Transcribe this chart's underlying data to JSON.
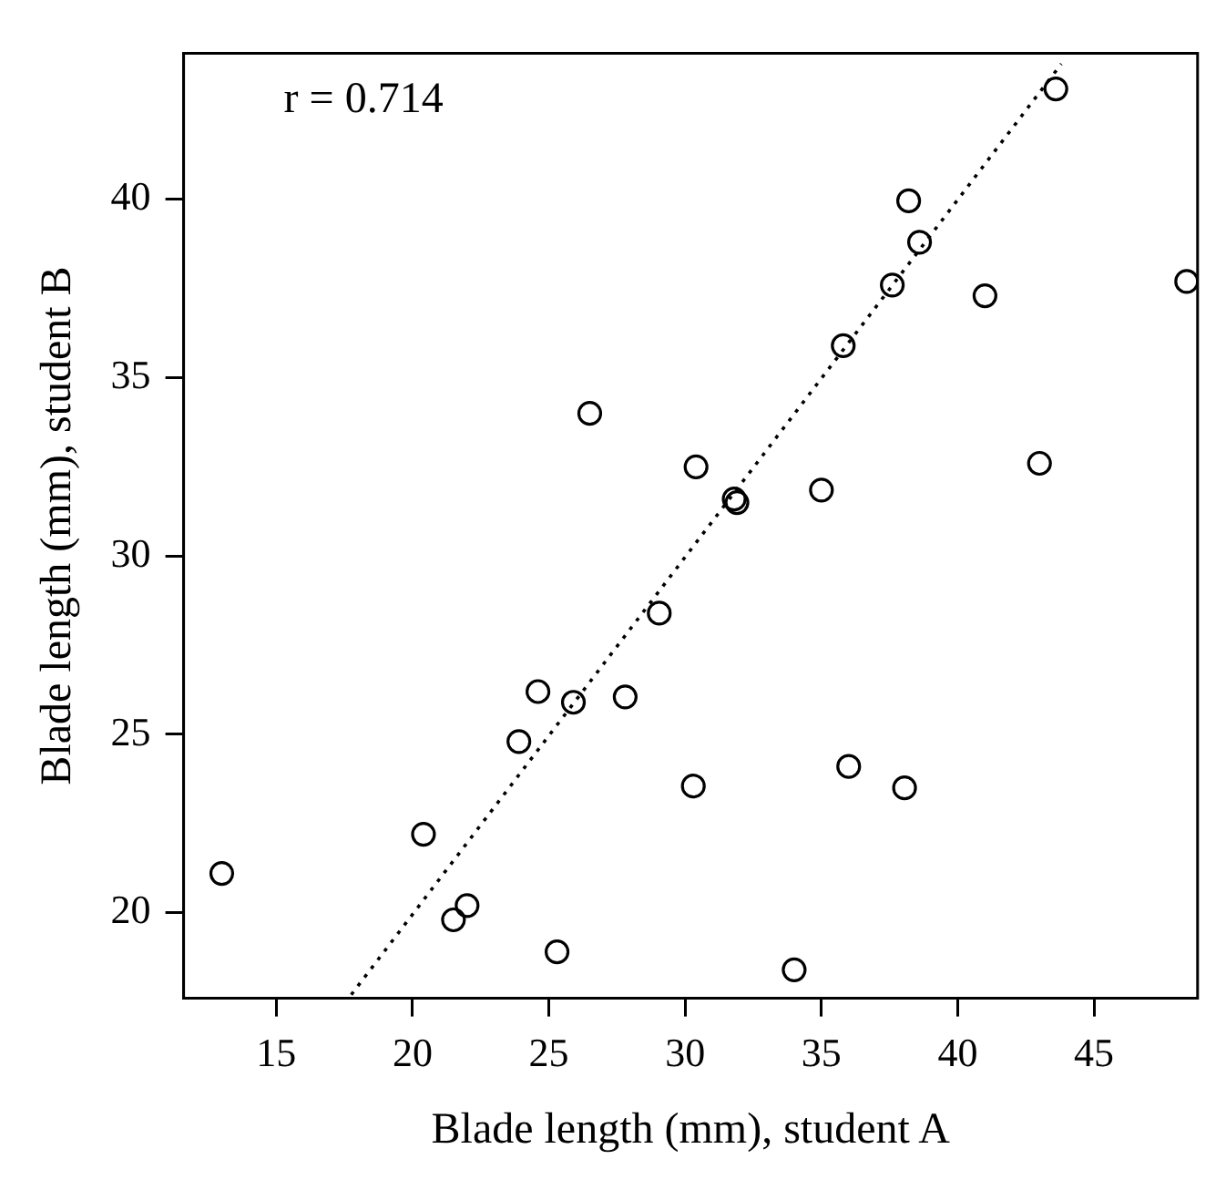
{
  "chart_data": {
    "type": "scatter",
    "xlabel": "Blade length (mm), student A",
    "ylabel": "Blade length (mm), student B",
    "annotations": [
      "r = 0.714"
    ],
    "xlim": [
      11.6,
      48.8
    ],
    "ylim": [
      17.6,
      44.1
    ],
    "xticks": [
      15,
      20,
      25,
      30,
      35,
      40,
      45
    ],
    "yticks": [
      20,
      25,
      30,
      35,
      40
    ],
    "grid": false,
    "legend": false,
    "marker": "circle",
    "series": [
      {
        "color": "#000000",
        "x": [
          26.5,
          30.4,
          43.6,
          38.2,
          38.6,
          37.6,
          41.0,
          48.4,
          35.8,
          31.8,
          31.9,
          35.0,
          43.0,
          29.05,
          24.6,
          25.9,
          27.8,
          23.9,
          30.3,
          20.4,
          13.0,
          22.0,
          21.5,
          25.3,
          36.0,
          38.05,
          34.0
        ],
        "values": [
          34.0,
          32.5,
          43.1,
          39.96,
          38.8,
          37.6,
          37.3,
          37.7,
          35.9,
          31.6,
          31.5,
          31.85,
          32.6,
          28.4,
          26.2,
          25.9,
          26.05,
          24.8,
          23.55,
          22.2,
          21.1,
          20.2,
          19.8,
          18.9,
          24.1,
          23.5,
          18.4
        ]
      },
      {
        "type": "line",
        "color": "#000000",
        "line_style": "dotted",
        "marker": "none",
        "x": [
          17.75,
          43.8
        ],
        "values": [
          17.7,
          43.8
        ]
      }
    ]
  }
}
